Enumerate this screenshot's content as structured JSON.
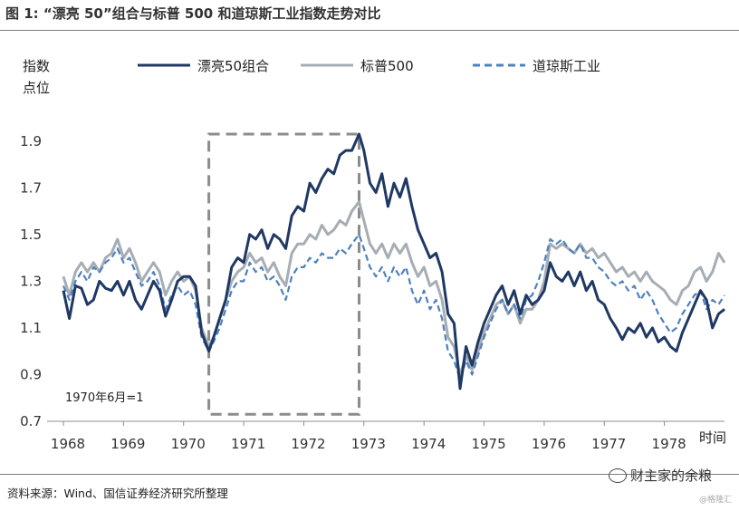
{
  "header": {
    "title": "图 1: “漂亮 50”组合与标普 500 和道琼斯工业指数走势对比"
  },
  "footer": {
    "source": "资料来源：Wind、国信证券经济研究所整理",
    "watermark": "财主家的余粮",
    "watermark_small": "@格隆汇"
  },
  "chart_data": {
    "type": "line",
    "ylabel": "指数\n点位",
    "xlabel": "时间",
    "ylim": [
      0.7,
      2.0
    ],
    "yticks": [
      0.7,
      0.9,
      1.1,
      1.3,
      1.5,
      1.7,
      1.9
    ],
    "xlim": [
      1968.0,
      1979.0
    ],
    "xticks": [
      "1968",
      "1969",
      "1970",
      "1971",
      "1972",
      "1973",
      "1974",
      "1975",
      "1976",
      "1977",
      "1978"
    ],
    "annotation": "1970年6月=1",
    "highlight_box": {
      "x": [
        1970.42,
        1972.92
      ],
      "y": [
        0.73,
        1.93
      ]
    },
    "legend_position": "top",
    "series": [
      {
        "name": "漂亮50组合",
        "color": "#1f3864",
        "style": "solid",
        "x": [
          1968.0,
          1968.1,
          1968.2,
          1968.3,
          1968.4,
          1968.5,
          1968.6,
          1968.7,
          1968.8,
          1968.9,
          1969.0,
          1969.1,
          1969.2,
          1969.3,
          1969.4,
          1969.5,
          1969.6,
          1969.7,
          1969.8,
          1969.9,
          1970.0,
          1970.1,
          1970.2,
          1970.3,
          1970.42,
          1970.5,
          1970.6,
          1970.7,
          1970.8,
          1970.9,
          1971.0,
          1971.1,
          1971.2,
          1971.3,
          1971.4,
          1971.5,
          1971.6,
          1971.7,
          1971.8,
          1971.9,
          1972.0,
          1972.1,
          1972.2,
          1972.3,
          1972.4,
          1972.5,
          1972.6,
          1972.7,
          1972.8,
          1972.92,
          1973.0,
          1973.1,
          1973.2,
          1973.3,
          1973.4,
          1973.5,
          1973.6,
          1973.7,
          1973.8,
          1973.9,
          1974.0,
          1974.1,
          1974.2,
          1974.3,
          1974.4,
          1974.5,
          1974.6,
          1974.7,
          1974.8,
          1974.9,
          1975.0,
          1975.1,
          1975.2,
          1975.3,
          1975.4,
          1975.5,
          1975.6,
          1975.7,
          1975.8,
          1975.9,
          1976.0,
          1976.1,
          1976.2,
          1976.3,
          1976.4,
          1976.5,
          1976.6,
          1976.7,
          1976.8,
          1976.9,
          1977.0,
          1977.1,
          1977.2,
          1977.3,
          1977.4,
          1977.5,
          1977.6,
          1977.7,
          1977.8,
          1977.9,
          1978.0,
          1978.1,
          1978.2,
          1978.3,
          1978.4,
          1978.5,
          1978.6,
          1978.7,
          1978.8,
          1978.9,
          1979.0
        ],
        "y": [
          1.26,
          1.14,
          1.28,
          1.27,
          1.2,
          1.22,
          1.3,
          1.27,
          1.26,
          1.3,
          1.24,
          1.3,
          1.22,
          1.18,
          1.24,
          1.3,
          1.26,
          1.15,
          1.22,
          1.3,
          1.32,
          1.32,
          1.28,
          1.08,
          1.0,
          1.06,
          1.14,
          1.22,
          1.36,
          1.4,
          1.38,
          1.5,
          1.48,
          1.52,
          1.44,
          1.5,
          1.48,
          1.44,
          1.58,
          1.62,
          1.6,
          1.72,
          1.68,
          1.74,
          1.78,
          1.76,
          1.84,
          1.86,
          1.86,
          1.93,
          1.86,
          1.72,
          1.68,
          1.76,
          1.62,
          1.72,
          1.66,
          1.74,
          1.62,
          1.52,
          1.46,
          1.4,
          1.42,
          1.34,
          1.16,
          1.12,
          0.84,
          1.02,
          0.94,
          1.04,
          1.12,
          1.18,
          1.24,
          1.28,
          1.2,
          1.26,
          1.16,
          1.24,
          1.2,
          1.22,
          1.26,
          1.38,
          1.32,
          1.3,
          1.34,
          1.28,
          1.34,
          1.26,
          1.3,
          1.22,
          1.2,
          1.14,
          1.1,
          1.05,
          1.1,
          1.08,
          1.12,
          1.06,
          1.1,
          1.04,
          1.06,
          1.02,
          1.0,
          1.08,
          1.14,
          1.2,
          1.26,
          1.22,
          1.1,
          1.16,
          1.18
        ]
      },
      {
        "name": "标普500",
        "color": "#a6adb4",
        "style": "solid",
        "x": [
          1968.0,
          1968.1,
          1968.2,
          1968.3,
          1968.4,
          1968.5,
          1968.6,
          1968.7,
          1968.8,
          1968.9,
          1969.0,
          1969.1,
          1969.2,
          1969.3,
          1969.4,
          1969.5,
          1969.6,
          1969.7,
          1969.8,
          1969.9,
          1970.0,
          1970.1,
          1970.2,
          1970.3,
          1970.42,
          1970.5,
          1970.6,
          1970.7,
          1970.8,
          1970.9,
          1971.0,
          1971.1,
          1971.2,
          1971.3,
          1971.4,
          1971.5,
          1971.6,
          1971.7,
          1971.8,
          1971.9,
          1972.0,
          1972.1,
          1972.2,
          1972.3,
          1972.4,
          1972.5,
          1972.6,
          1972.7,
          1972.8,
          1972.92,
          1973.0,
          1973.1,
          1973.2,
          1973.3,
          1973.4,
          1973.5,
          1973.6,
          1973.7,
          1973.8,
          1973.9,
          1974.0,
          1974.1,
          1974.2,
          1974.3,
          1974.4,
          1974.5,
          1974.6,
          1974.7,
          1974.8,
          1974.9,
          1975.0,
          1975.1,
          1975.2,
          1975.3,
          1975.4,
          1975.5,
          1975.6,
          1975.7,
          1975.8,
          1975.9,
          1976.0,
          1976.1,
          1976.2,
          1976.3,
          1976.4,
          1976.5,
          1976.6,
          1976.7,
          1976.8,
          1976.9,
          1977.0,
          1977.1,
          1977.2,
          1977.3,
          1977.4,
          1977.5,
          1977.6,
          1977.7,
          1977.8,
          1977.9,
          1978.0,
          1978.1,
          1978.2,
          1978.3,
          1978.4,
          1978.5,
          1978.6,
          1978.7,
          1978.8,
          1978.9,
          1979.0
        ],
        "y": [
          1.32,
          1.24,
          1.34,
          1.38,
          1.34,
          1.38,
          1.34,
          1.4,
          1.42,
          1.48,
          1.4,
          1.44,
          1.38,
          1.3,
          1.34,
          1.38,
          1.34,
          1.24,
          1.3,
          1.34,
          1.3,
          1.32,
          1.26,
          1.1,
          1.02,
          1.06,
          1.14,
          1.22,
          1.3,
          1.34,
          1.36,
          1.42,
          1.38,
          1.4,
          1.34,
          1.38,
          1.32,
          1.28,
          1.42,
          1.46,
          1.46,
          1.5,
          1.48,
          1.54,
          1.5,
          1.52,
          1.56,
          1.54,
          1.6,
          1.64,
          1.56,
          1.46,
          1.42,
          1.46,
          1.4,
          1.46,
          1.42,
          1.46,
          1.38,
          1.32,
          1.36,
          1.28,
          1.3,
          1.22,
          1.06,
          1.02,
          0.9,
          0.98,
          0.92,
          1.0,
          1.08,
          1.14,
          1.2,
          1.22,
          1.16,
          1.2,
          1.12,
          1.18,
          1.18,
          1.22,
          1.3,
          1.46,
          1.44,
          1.46,
          1.44,
          1.42,
          1.46,
          1.42,
          1.44,
          1.4,
          1.42,
          1.38,
          1.34,
          1.36,
          1.32,
          1.34,
          1.3,
          1.34,
          1.3,
          1.28,
          1.26,
          1.22,
          1.2,
          1.26,
          1.28,
          1.34,
          1.36,
          1.3,
          1.34,
          1.42,
          1.38
        ]
      },
      {
        "name": "道琼斯工业",
        "color": "#4f81bd",
        "style": "dashed",
        "x": [
          1968.0,
          1968.1,
          1968.2,
          1968.3,
          1968.4,
          1968.5,
          1968.6,
          1968.7,
          1968.8,
          1968.9,
          1969.0,
          1969.1,
          1969.2,
          1969.3,
          1969.4,
          1969.5,
          1969.6,
          1969.7,
          1969.8,
          1969.9,
          1970.0,
          1970.1,
          1970.2,
          1970.3,
          1970.42,
          1970.5,
          1970.6,
          1970.7,
          1970.8,
          1970.9,
          1971.0,
          1971.1,
          1971.2,
          1971.3,
          1971.4,
          1971.5,
          1971.6,
          1971.7,
          1971.8,
          1971.9,
          1972.0,
          1972.1,
          1972.2,
          1972.3,
          1972.4,
          1972.5,
          1972.6,
          1972.7,
          1972.8,
          1972.92,
          1973.0,
          1973.1,
          1973.2,
          1973.3,
          1973.4,
          1973.5,
          1973.6,
          1973.7,
          1973.8,
          1973.9,
          1974.0,
          1974.1,
          1974.2,
          1974.3,
          1974.4,
          1974.5,
          1974.6,
          1974.7,
          1974.8,
          1974.9,
          1975.0,
          1975.1,
          1975.2,
          1975.3,
          1975.4,
          1975.5,
          1975.6,
          1975.7,
          1975.8,
          1975.9,
          1976.0,
          1976.1,
          1976.2,
          1976.3,
          1976.4,
          1976.5,
          1976.6,
          1976.7,
          1976.8,
          1976.9,
          1977.0,
          1977.1,
          1977.2,
          1977.3,
          1977.4,
          1977.5,
          1977.6,
          1977.7,
          1977.8,
          1977.9,
          1978.0,
          1978.1,
          1978.2,
          1978.3,
          1978.4,
          1978.5,
          1978.6,
          1978.7,
          1978.8,
          1978.9,
          1979.0
        ],
        "y": [
          1.28,
          1.22,
          1.3,
          1.34,
          1.3,
          1.36,
          1.34,
          1.38,
          1.4,
          1.44,
          1.38,
          1.4,
          1.34,
          1.28,
          1.3,
          1.34,
          1.28,
          1.18,
          1.24,
          1.28,
          1.24,
          1.26,
          1.2,
          1.06,
          1.0,
          1.04,
          1.1,
          1.18,
          1.26,
          1.3,
          1.3,
          1.38,
          1.34,
          1.36,
          1.3,
          1.32,
          1.28,
          1.22,
          1.32,
          1.36,
          1.36,
          1.4,
          1.38,
          1.42,
          1.4,
          1.4,
          1.44,
          1.42,
          1.46,
          1.5,
          1.44,
          1.36,
          1.32,
          1.36,
          1.3,
          1.36,
          1.32,
          1.36,
          1.26,
          1.2,
          1.26,
          1.18,
          1.22,
          1.14,
          1.0,
          0.96,
          0.88,
          0.96,
          0.9,
          0.98,
          1.06,
          1.12,
          1.18,
          1.22,
          1.16,
          1.2,
          1.14,
          1.22,
          1.24,
          1.3,
          1.38,
          1.48,
          1.46,
          1.48,
          1.44,
          1.42,
          1.46,
          1.4,
          1.4,
          1.36,
          1.34,
          1.3,
          1.28,
          1.3,
          1.26,
          1.28,
          1.22,
          1.26,
          1.22,
          1.16,
          1.12,
          1.08,
          1.1,
          1.16,
          1.2,
          1.24,
          1.26,
          1.18,
          1.22,
          1.2,
          1.24
        ]
      }
    ]
  }
}
